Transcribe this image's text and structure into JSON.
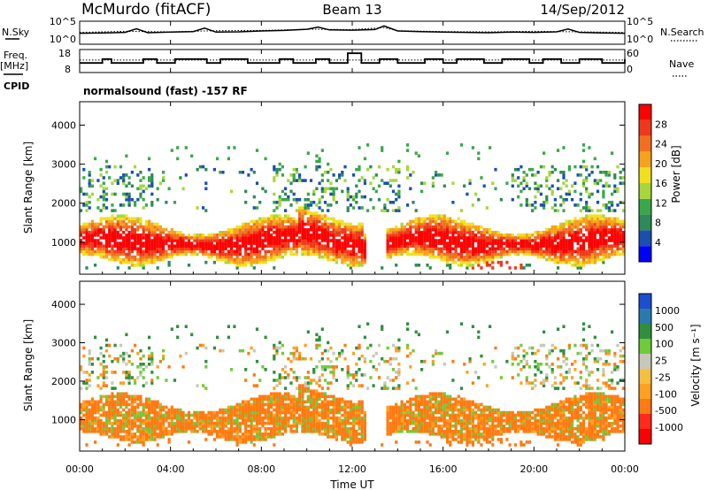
{
  "header": {
    "station": "McMurdo (fitACF)",
    "beam": "Beam 13",
    "date": "14/Sep/2012"
  },
  "top_panel": {
    "left_label": "N.Sky",
    "right_label": "N.Search",
    "left_ticks": [
      "10^5",
      "10^0"
    ],
    "right_ticks": [
      "10^5",
      "10^0"
    ]
  },
  "freq_panel": {
    "left_label_1": "Freq.",
    "left_label_2": "[MHz]",
    "right_label": "Nave",
    "left_ticks": [
      "18",
      "8"
    ],
    "right_ticks": [
      "60",
      "0"
    ]
  },
  "cpid_label": "CPID",
  "program": "normalsound (fast) -157 RF",
  "colors": {
    "power_scale": [
      "#0000ff",
      "#1a4fb0",
      "#2e8a57",
      "#3aa84a",
      "#a6d63a",
      "#f0e020",
      "#f7a21c",
      "#f07020",
      "#ee3a1a",
      "#ff0000"
    ],
    "velocity_scale": [
      "#ff0000",
      "#ff2a1a",
      "#ff7a12",
      "#ffa020",
      "#f5c040",
      "#c8c8b8",
      "#6ecb3a",
      "#2f8f3e",
      "#2a7ab0",
      "#1a4fd0"
    ]
  },
  "chart_data": [
    {
      "type": "heatmap",
      "name": "power",
      "xlabel": "Time UT",
      "ylabel": "Slant Range [km]",
      "xlim": [
        "00:00",
        "24:00"
      ],
      "ylim": [
        180,
        4600
      ],
      "x_ticks": [
        "00:00",
        "04:00",
        "08:00",
        "12:00",
        "16:00",
        "20:00",
        "00:00"
      ],
      "y_ticks": [
        1000,
        2000,
        3000,
        4000
      ],
      "colorbar_label": "Power [dB]",
      "colorbar_ticks": [
        4,
        8,
        12,
        16,
        20,
        24,
        28
      ],
      "colorbar_range": [
        0,
        30
      ]
    },
    {
      "type": "heatmap",
      "name": "velocity",
      "xlabel": "Time UT",
      "ylabel": "Slant Range [km]",
      "xlim": [
        "00:00",
        "24:00"
      ],
      "ylim": [
        180,
        4600
      ],
      "x_ticks": [
        "00:00",
        "04:00",
        "08:00",
        "12:00",
        "16:00",
        "20:00",
        "00:00"
      ],
      "y_ticks": [
        1000,
        2000,
        3000,
        4000
      ],
      "colorbar_label": "Velocity [m s⁻¹]",
      "colorbar_ticks": [
        1000,
        500,
        100,
        25,
        -25,
        -100,
        -500,
        -1000
      ]
    },
    {
      "type": "line",
      "name": "noise",
      "series": [
        {
          "name": "N.Sky",
          "x": [
            0,
            1,
            2,
            2.5,
            3,
            4,
            5,
            5.5,
            6,
            7,
            8,
            9,
            10,
            10.5,
            11,
            12,
            13,
            13.4,
            14,
            15,
            16,
            17,
            18,
            19,
            20,
            21,
            21.5,
            22,
            23,
            24
          ],
          "values": [
            2.0,
            2.1,
            2.3,
            3.6,
            2.2,
            2.4,
            2.6,
            3.8,
            2.4,
            2.5,
            2.8,
            3.0,
            3.4,
            4.2,
            3.2,
            3.1,
            3.3,
            4.6,
            2.8,
            2.6,
            2.4,
            2.3,
            2.2,
            2.4,
            2.3,
            2.5,
            3.5,
            2.3,
            2.1,
            2.0
          ]
        },
        {
          "name": "N.Search",
          "x": [
            0,
            2,
            4,
            6,
            8,
            10,
            12,
            13.4,
            14,
            16,
            18,
            20,
            22,
            24
          ],
          "values": [
            2.3,
            2.7,
            2.5,
            2.9,
            3.0,
            3.4,
            3.3,
            4.0,
            2.9,
            2.6,
            2.5,
            2.7,
            2.5,
            2.3
          ]
        }
      ]
    },
    {
      "type": "line",
      "name": "frequency_nave",
      "series": [
        {
          "name": "Freq.",
          "x": [
            0,
            1,
            1.4,
            2.8,
            3.4,
            4.2,
            5.6,
            6.2,
            7.4,
            8.8,
            9.4,
            10.4,
            11,
            11.8,
            12.4,
            13.2,
            14,
            15.2,
            16,
            16.6,
            17.8,
            18.6,
            19.8,
            20.4,
            21.2,
            22,
            23,
            24
          ],
          "values": [
            12,
            14,
            12,
            14,
            12,
            14,
            12,
            14,
            12,
            14,
            12,
            14,
            12,
            17,
            12,
            14,
            12,
            14,
            12,
            14,
            12,
            14,
            12,
            14,
            12,
            14,
            12,
            14
          ]
        },
        {
          "name": "Nave",
          "x": [
            0,
            24
          ],
          "values": [
            33,
            33
          ]
        }
      ]
    }
  ]
}
